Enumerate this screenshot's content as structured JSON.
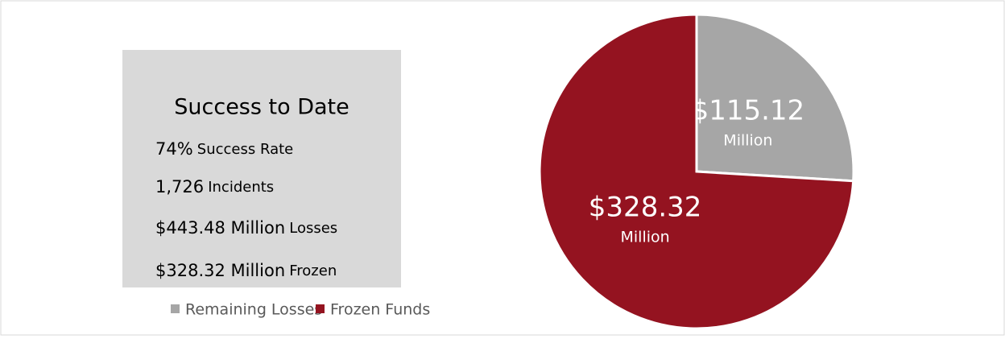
{
  "panel": {
    "title": "Success to Date",
    "items": [
      {
        "value": "74%",
        "label": "Success Rate"
      },
      {
        "value": "1,726",
        "label": "Incidents"
      },
      {
        "value": "$443.48 Million",
        "label": "Losses"
      },
      {
        "value": "$328.32 Million",
        "label": "Frozen"
      }
    ]
  },
  "chart_data": {
    "type": "pie",
    "categories": [
      "Remaining Losses",
      "Frozen Funds"
    ],
    "values": [
      115.12,
      328.32
    ],
    "value_labels": [
      "$115.12",
      "$328.32"
    ],
    "value_label_unit": "Million",
    "colors": [
      "#a6a6a6",
      "#941320"
    ],
    "legend": "bottom-left"
  }
}
